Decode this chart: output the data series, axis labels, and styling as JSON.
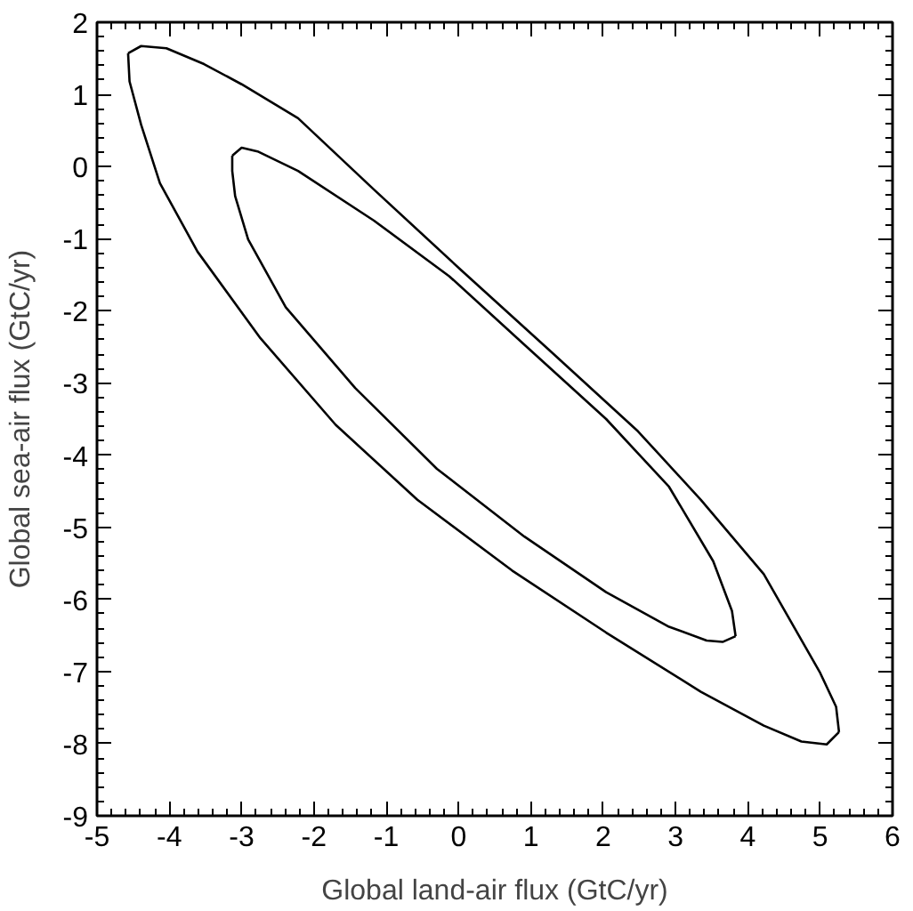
{
  "chart_data": {
    "type": "line",
    "xlabel": "Global land-air flux (GtC/yr)",
    "ylabel": "Global sea-air flux (GtC/yr)",
    "xlim": [
      -5,
      6
    ],
    "ylim": [
      -9,
      2
    ],
    "xticks": [
      -5,
      -4,
      -3,
      -2,
      -1,
      0,
      1,
      2,
      3,
      4,
      5,
      6
    ],
    "yticks": [
      -9,
      -8,
      -7,
      -6,
      -5,
      -4,
      -3,
      -2,
      -1,
      0,
      1,
      2
    ],
    "marker": "none",
    "line_style": "solid",
    "series": [
      {
        "color": "#000000",
        "x": [
          -4.57,
          -4.39,
          -4.04,
          -3.52,
          -3.0,
          -2.22,
          -1.17,
          0.04,
          1.26,
          2.48,
          3.35,
          4.22,
          5.0,
          5.22,
          5.26
        ],
        "values": [
          1.57,
          1.67,
          1.64,
          1.42,
          1.14,
          0.67,
          -0.32,
          -1.44,
          -2.55,
          -3.67,
          -4.62,
          -5.65,
          -7.02,
          -7.49,
          -7.84
        ]
      },
      {
        "color": "#000000",
        "x": [
          -4.57,
          -4.55,
          -4.39,
          -4.13,
          -3.61,
          -2.74,
          -1.7,
          -0.57,
          0.74,
          2.04,
          3.35,
          4.22,
          4.74,
          5.09,
          5.26
        ],
        "values": [
          1.57,
          1.18,
          0.58,
          -0.23,
          -1.18,
          -2.38,
          -3.58,
          -4.62,
          -5.6,
          -6.46,
          -7.28,
          -7.75,
          -7.97,
          -8.01,
          -7.84
        ]
      },
      {
        "color": "#000000",
        "x": [
          -3.13,
          -3.0,
          -2.78,
          -2.22,
          -1.17,
          -0.13,
          0.91,
          2.04,
          2.91,
          3.52,
          3.78,
          3.83
        ],
        "values": [
          0.15,
          0.26,
          0.21,
          -0.06,
          -0.75,
          -1.52,
          -2.47,
          -3.5,
          -4.44,
          -5.47,
          -6.16,
          -6.51
        ]
      },
      {
        "color": "#000000",
        "x": [
          -3.13,
          -3.13,
          -3.09,
          -2.91,
          -2.39,
          -1.43,
          -0.3,
          0.91,
          2.04,
          2.91,
          3.43,
          3.65,
          3.83
        ],
        "values": [
          0.15,
          -0.06,
          -0.41,
          -1.01,
          -1.95,
          -3.07,
          -4.19,
          -5.13,
          -5.9,
          -6.38,
          -6.57,
          -6.59,
          -6.51
        ]
      }
    ]
  }
}
